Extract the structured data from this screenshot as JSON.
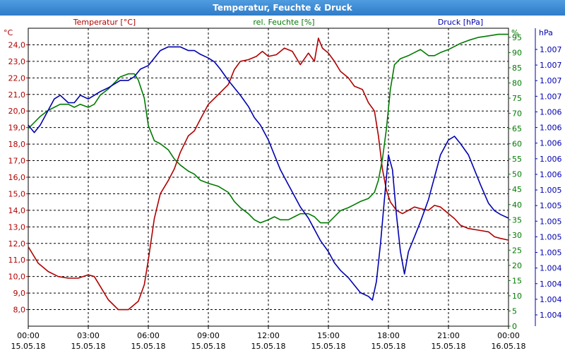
{
  "window": {
    "title": "Temperatur, Feuchte & Druck"
  },
  "chart_data": {
    "type": "line",
    "title": "Temperatur, Feuchte & Druck",
    "grid": true,
    "colors": {
      "temperature": "#b00000",
      "humidity": "#007a00",
      "pressure": "#0000b0",
      "grid": "#000000"
    },
    "x_ticks": [
      {
        "time": "00:00",
        "date": "15.05.18"
      },
      {
        "time": "03:00",
        "date": "15.05.18"
      },
      {
        "time": "06:00",
        "date": "15.05.18"
      },
      {
        "time": "09:00",
        "date": "15.05.18"
      },
      {
        "time": "12:00",
        "date": "15.05.18"
      },
      {
        "time": "15:00",
        "date": "15.05.18"
      },
      {
        "time": "18:00",
        "date": "15.05.18"
      },
      {
        "time": "21:00",
        "date": "15.05.18"
      },
      {
        "time": "00:00",
        "date": "16.05.18"
      }
    ],
    "x_range_hours": [
      0,
      24
    ],
    "axes": {
      "temperature": {
        "label": "Temperatur [°C]",
        "unit": "°C",
        "range": [
          7.0,
          25.0
        ],
        "ticks": [
          "8,0",
          "9,0",
          "10,0",
          "11,0",
          "12,0",
          "13,0",
          "14,0",
          "15,0",
          "16,0",
          "17,0",
          "18,0",
          "19,0",
          "20,0",
          "21,0",
          "22,0",
          "23,0",
          "24,0"
        ]
      },
      "humidity": {
        "label": "rel. Feuchte [%]",
        "unit": "%",
        "range": [
          0,
          98
        ],
        "ticks": [
          "0",
          "5",
          "10",
          "15",
          "20",
          "25",
          "30",
          "35",
          "40",
          "45",
          "50",
          "55",
          "60",
          "65",
          "70",
          "75",
          "80",
          "85",
          "90",
          "95"
        ]
      },
      "pressure": {
        "label": "Druck [hPa]",
        "unit": "hPa",
        "range": [
          1003.5,
          1007.5
        ],
        "ticks": [
          "1.004",
          "1.004",
          "1.004",
          "1.004",
          "1.005",
          "1.005",
          "1.005",
          "1.005",
          "1.005",
          "1.006",
          "1.006",
          "1.006",
          "1.006",
          "1.006",
          "1.007",
          "1.007",
          "1.007",
          "1.007"
        ]
      }
    },
    "series": [
      {
        "name": "Temperatur [°C]",
        "axis": "temperature",
        "points": [
          [
            0,
            11.8
          ],
          [
            0.5,
            10.8
          ],
          [
            1,
            10.3
          ],
          [
            1.5,
            10.0
          ],
          [
            2,
            9.9
          ],
          [
            2.5,
            9.9
          ],
          [
            3,
            10.1
          ],
          [
            3.3,
            10.0
          ],
          [
            3.6,
            9.4
          ],
          [
            4,
            8.6
          ],
          [
            4.5,
            8.0
          ],
          [
            5,
            8.0
          ],
          [
            5.5,
            8.5
          ],
          [
            5.8,
            9.5
          ],
          [
            6,
            11.0
          ],
          [
            6.3,
            13.5
          ],
          [
            6.6,
            15.0
          ],
          [
            7,
            15.8
          ],
          [
            7.3,
            16.5
          ],
          [
            7.6,
            17.5
          ],
          [
            8,
            18.5
          ],
          [
            8.3,
            18.8
          ],
          [
            8.6,
            19.5
          ],
          [
            9,
            20.4
          ],
          [
            9.5,
            21.0
          ],
          [
            10,
            21.6
          ],
          [
            10.3,
            22.5
          ],
          [
            10.6,
            23.0
          ],
          [
            11,
            23.1
          ],
          [
            11.4,
            23.3
          ],
          [
            11.7,
            23.6
          ],
          [
            12,
            23.3
          ],
          [
            12.4,
            23.4
          ],
          [
            12.8,
            23.8
          ],
          [
            13.2,
            23.6
          ],
          [
            13.6,
            22.8
          ],
          [
            14,
            23.5
          ],
          [
            14.3,
            23.0
          ],
          [
            14.5,
            24.4
          ],
          [
            14.7,
            23.8
          ],
          [
            15,
            23.5
          ],
          [
            15.3,
            23.0
          ],
          [
            15.6,
            22.4
          ],
          [
            16,
            22.0
          ],
          [
            16.3,
            21.5
          ],
          [
            16.7,
            21.3
          ],
          [
            17,
            20.5
          ],
          [
            17.3,
            20.0
          ],
          [
            17.5,
            18.5
          ],
          [
            17.7,
            16.5
          ],
          [
            17.9,
            15.2
          ],
          [
            18.1,
            14.5
          ],
          [
            18.4,
            14.0
          ],
          [
            18.7,
            13.8
          ],
          [
            19,
            14.0
          ],
          [
            19.3,
            14.2
          ],
          [
            19.6,
            14.1
          ],
          [
            20,
            14.0
          ],
          [
            20.3,
            14.3
          ],
          [
            20.6,
            14.2
          ],
          [
            21,
            13.8
          ],
          [
            21.3,
            13.5
          ],
          [
            21.6,
            13.1
          ],
          [
            22,
            12.9
          ],
          [
            22.5,
            12.8
          ],
          [
            23,
            12.7
          ],
          [
            23.3,
            12.4
          ],
          [
            23.6,
            12.3
          ],
          [
            24,
            12.2
          ]
        ]
      },
      {
        "name": "rel. Feuchte [%]",
        "axis": "humidity",
        "points": [
          [
            0,
            65
          ],
          [
            0.3,
            67
          ],
          [
            0.6,
            69
          ],
          [
            1,
            71
          ],
          [
            1.3,
            72
          ],
          [
            1.6,
            73
          ],
          [
            2,
            73
          ],
          [
            2.3,
            72
          ],
          [
            2.6,
            73
          ],
          [
            3,
            72
          ],
          [
            3.3,
            73
          ],
          [
            3.6,
            76
          ],
          [
            4,
            78
          ],
          [
            4.3,
            80
          ],
          [
            4.6,
            82
          ],
          [
            5,
            83
          ],
          [
            5.3,
            83
          ],
          [
            5.5,
            81
          ],
          [
            5.8,
            75
          ],
          [
            6,
            66
          ],
          [
            6.3,
            61
          ],
          [
            6.6,
            60
          ],
          [
            7,
            58
          ],
          [
            7.3,
            55
          ],
          [
            7.6,
            53
          ],
          [
            8,
            51
          ],
          [
            8.3,
            50
          ],
          [
            8.6,
            48
          ],
          [
            9,
            47
          ],
          [
            9.5,
            46
          ],
          [
            10,
            44
          ],
          [
            10.3,
            41
          ],
          [
            10.6,
            39
          ],
          [
            11,
            37
          ],
          [
            11.3,
            35
          ],
          [
            11.6,
            34
          ],
          [
            12,
            35
          ],
          [
            12.3,
            36
          ],
          [
            12.6,
            35
          ],
          [
            13,
            35
          ],
          [
            13.3,
            36
          ],
          [
            13.6,
            37
          ],
          [
            14,
            37
          ],
          [
            14.3,
            36
          ],
          [
            14.6,
            34
          ],
          [
            15,
            34
          ],
          [
            15.3,
            36
          ],
          [
            15.6,
            38
          ],
          [
            16,
            39
          ],
          [
            16.3,
            40
          ],
          [
            16.6,
            41
          ],
          [
            17,
            42
          ],
          [
            17.3,
            44
          ],
          [
            17.5,
            48
          ],
          [
            17.7,
            55
          ],
          [
            17.9,
            65
          ],
          [
            18.1,
            78
          ],
          [
            18.3,
            86
          ],
          [
            18.6,
            88
          ],
          [
            19,
            89
          ],
          [
            19.3,
            90
          ],
          [
            19.6,
            91
          ],
          [
            20,
            89
          ],
          [
            20.3,
            89
          ],
          [
            20.6,
            90
          ],
          [
            21,
            91
          ],
          [
            21.3,
            92
          ],
          [
            21.6,
            93
          ],
          [
            22,
            94
          ],
          [
            22.5,
            95
          ],
          [
            23,
            95.5
          ],
          [
            23.5,
            96
          ],
          [
            24,
            96
          ]
        ]
      },
      {
        "name": "Druck [hPa]",
        "axis": "pressure",
        "points": [
          [
            0,
            1006.2
          ],
          [
            0.3,
            1006.1
          ],
          [
            0.6,
            1006.2
          ],
          [
            1,
            1006.4
          ],
          [
            1.3,
            1006.55
          ],
          [
            1.6,
            1006.6
          ],
          [
            2,
            1006.5
          ],
          [
            2.3,
            1006.5
          ],
          [
            2.6,
            1006.6
          ],
          [
            3,
            1006.55
          ],
          [
            3.3,
            1006.6
          ],
          [
            3.6,
            1006.65
          ],
          [
            4,
            1006.7
          ],
          [
            4.3,
            1006.75
          ],
          [
            4.6,
            1006.8
          ],
          [
            5,
            1006.8
          ],
          [
            5.3,
            1006.85
          ],
          [
            5.6,
            1006.95
          ],
          [
            6,
            1007.0
          ],
          [
            6.3,
            1007.1
          ],
          [
            6.6,
            1007.2
          ],
          [
            7,
            1007.25
          ],
          [
            7.3,
            1007.25
          ],
          [
            7.6,
            1007.25
          ],
          [
            8,
            1007.2
          ],
          [
            8.3,
            1007.2
          ],
          [
            8.6,
            1007.15
          ],
          [
            9,
            1007.1
          ],
          [
            9.3,
            1007.05
          ],
          [
            9.6,
            1006.95
          ],
          [
            10,
            1006.8
          ],
          [
            10.3,
            1006.7
          ],
          [
            10.6,
            1006.6
          ],
          [
            11,
            1006.45
          ],
          [
            11.3,
            1006.3
          ],
          [
            11.6,
            1006.2
          ],
          [
            12,
            1006.0
          ],
          [
            12.3,
            1005.8
          ],
          [
            12.6,
            1005.6
          ],
          [
            13,
            1005.4
          ],
          [
            13.3,
            1005.25
          ],
          [
            13.6,
            1005.1
          ],
          [
            14,
            1004.95
          ],
          [
            14.3,
            1004.8
          ],
          [
            14.6,
            1004.65
          ],
          [
            15,
            1004.5
          ],
          [
            15.3,
            1004.35
          ],
          [
            15.6,
            1004.25
          ],
          [
            16,
            1004.15
          ],
          [
            16.3,
            1004.05
          ],
          [
            16.6,
            1003.95
          ],
          [
            17,
            1003.9
          ],
          [
            17.2,
            1003.85
          ],
          [
            17.4,
            1004.1
          ],
          [
            17.6,
            1004.6
          ],
          [
            17.8,
            1005.2
          ],
          [
            18,
            1005.8
          ],
          [
            18.2,
            1005.6
          ],
          [
            18.4,
            1005.0
          ],
          [
            18.6,
            1004.5
          ],
          [
            18.8,
            1004.2
          ],
          [
            19,
            1004.5
          ],
          [
            19.3,
            1004.7
          ],
          [
            19.6,
            1004.9
          ],
          [
            20,
            1005.2
          ],
          [
            20.3,
            1005.5
          ],
          [
            20.6,
            1005.8
          ],
          [
            21,
            1006.0
          ],
          [
            21.3,
            1006.05
          ],
          [
            21.6,
            1005.95
          ],
          [
            22,
            1005.8
          ],
          [
            22.3,
            1005.6
          ],
          [
            22.6,
            1005.4
          ],
          [
            23,
            1005.15
          ],
          [
            23.3,
            1005.05
          ],
          [
            23.6,
            1005.0
          ],
          [
            24,
            1004.95
          ]
        ]
      }
    ]
  }
}
